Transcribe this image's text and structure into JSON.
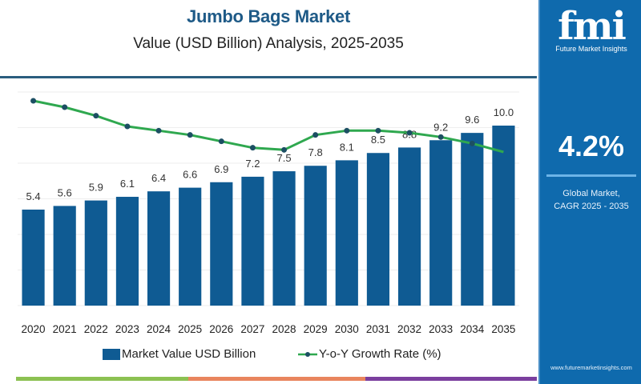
{
  "header": {
    "title": "Jumbo Bags Market",
    "subtitle": "Value (USD Billion) Analysis, 2025-2035"
  },
  "sidebar": {
    "logo_text": "fmi",
    "logo_subtext": "Future Market Insights",
    "cagr_value": "4.2%",
    "cagr_label_line1": "Global Market,",
    "cagr_label_line2": "CAGR 2025 - 2035",
    "website": "www.futuremarketinsights.com"
  },
  "colors": {
    "bar": "#0f5b93",
    "line": "#2fa84f",
    "marker": "#1c4f63",
    "title": "#1e5a87",
    "sidebar": "#0f6aad",
    "stripe": [
      "#8cc152",
      "#e9855e",
      "#7b3f9e"
    ]
  },
  "chart_data": {
    "type": "bar",
    "title": "Jumbo Bags Market",
    "subtitle": "Value (USD Billion) Analysis, 2025-2035",
    "xlabel": "",
    "ylabel": "",
    "categories": [
      "2020",
      "2021",
      "2022",
      "2023",
      "2024",
      "2025",
      "2026",
      "2027",
      "2028",
      "2029",
      "2030",
      "2031",
      "2032",
      "2033",
      "2034",
      "2035"
    ],
    "series": [
      {
        "name": "Market Value USD Billion",
        "type": "bar",
        "values": [
          5.4,
          5.6,
          5.9,
          6.1,
          6.4,
          6.6,
          6.9,
          7.2,
          7.5,
          7.8,
          8.1,
          8.5,
          8.8,
          9.2,
          9.6,
          10.0
        ],
        "labels": [
          "5.4",
          "5.6",
          "5.9",
          "6.1",
          "6.4",
          "6.6",
          "6.9",
          "7.2",
          "7.5",
          "7.8",
          "8.1",
          "8.5",
          "8.8",
          "9.2",
          "9.6",
          "10.0"
        ]
      },
      {
        "name": "Y-o-Y Growth Rate (%)",
        "type": "line",
        "values": [
          5.6,
          5.3,
          4.9,
          4.4,
          4.2,
          4.0,
          3.7,
          3.4,
          3.3,
          4.0,
          4.2,
          4.2,
          4.1,
          3.9,
          3.6,
          3.2
        ],
        "note": "approximate; no axis labels shown"
      }
    ],
    "ylim": [
      0,
      12
    ],
    "grid": true,
    "legend": "bottom",
    "legend_entries": [
      "Market Value USD Billion",
      "Y-o-Y Growth Rate (%)"
    ]
  }
}
